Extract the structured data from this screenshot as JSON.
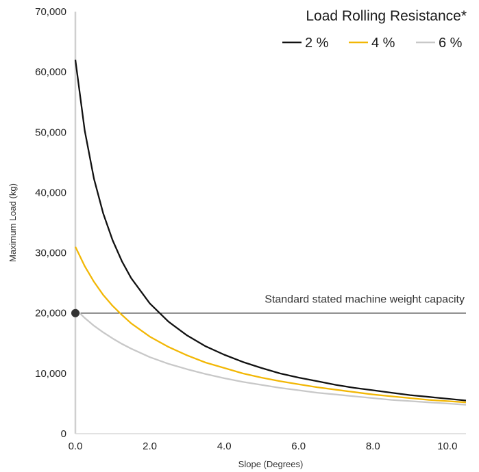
{
  "chart_data": {
    "type": "line",
    "xlabel": "Slope (Degrees)",
    "ylabel": "Maximum Load (kg)",
    "xlim": [
      0,
      10.5
    ],
    "ylim": [
      0,
      70000
    ],
    "x_ticks": [
      "0.0",
      "2.0",
      "4.0",
      "6.0",
      "8.0",
      "10.0"
    ],
    "y_ticks": [
      "0",
      "10,000",
      "20,000",
      "30,000",
      "40,000",
      "50,000",
      "60,000",
      "70,000"
    ],
    "legend_title": "Load Rolling Resistance*",
    "legend_position": "top-right",
    "grid": false,
    "x": [
      0,
      0.25,
      0.5,
      0.75,
      1.0,
      1.25,
      1.5,
      2.0,
      2.5,
      3.0,
      3.5,
      4.0,
      4.5,
      5.0,
      5.5,
      6.0,
      6.5,
      7.0,
      7.5,
      8.0,
      8.5,
      9.0,
      9.5,
      10.0,
      10.5
    ],
    "series": [
      {
        "name": "2 %",
        "color": "#111111",
        "values": [
          62000,
          50300,
          42300,
          36500,
          32100,
          28600,
          25800,
          21600,
          18600,
          16300,
          14500,
          13100,
          11900,
          10900,
          10000,
          9300,
          8700,
          8100,
          7600,
          7200,
          6800,
          6400,
          6100,
          5800,
          5500
        ]
      },
      {
        "name": "4 %",
        "color": "#f2b705",
        "values": [
          31000,
          27800,
          25200,
          23000,
          21200,
          19700,
          18300,
          16100,
          14400,
          13000,
          11800,
          10900,
          10000,
          9300,
          8700,
          8200,
          7700,
          7300,
          6900,
          6500,
          6200,
          5900,
          5600,
          5400,
          5200
        ]
      },
      {
        "name": "6 %",
        "color": "#c8c8c8",
        "values": [
          20700,
          19200,
          17900,
          16800,
          15800,
          14900,
          14100,
          12700,
          11600,
          10700,
          9900,
          9200,
          8600,
          8100,
          7600,
          7200,
          6800,
          6500,
          6200,
          5900,
          5600,
          5400,
          5200,
          5000,
          4800
        ]
      }
    ],
    "reference_line": {
      "label": "Standard stated machine weight capacity",
      "y": 20000,
      "color": "#222222"
    },
    "marker": {
      "x": 0,
      "y": 20000,
      "color": "#333333"
    }
  }
}
